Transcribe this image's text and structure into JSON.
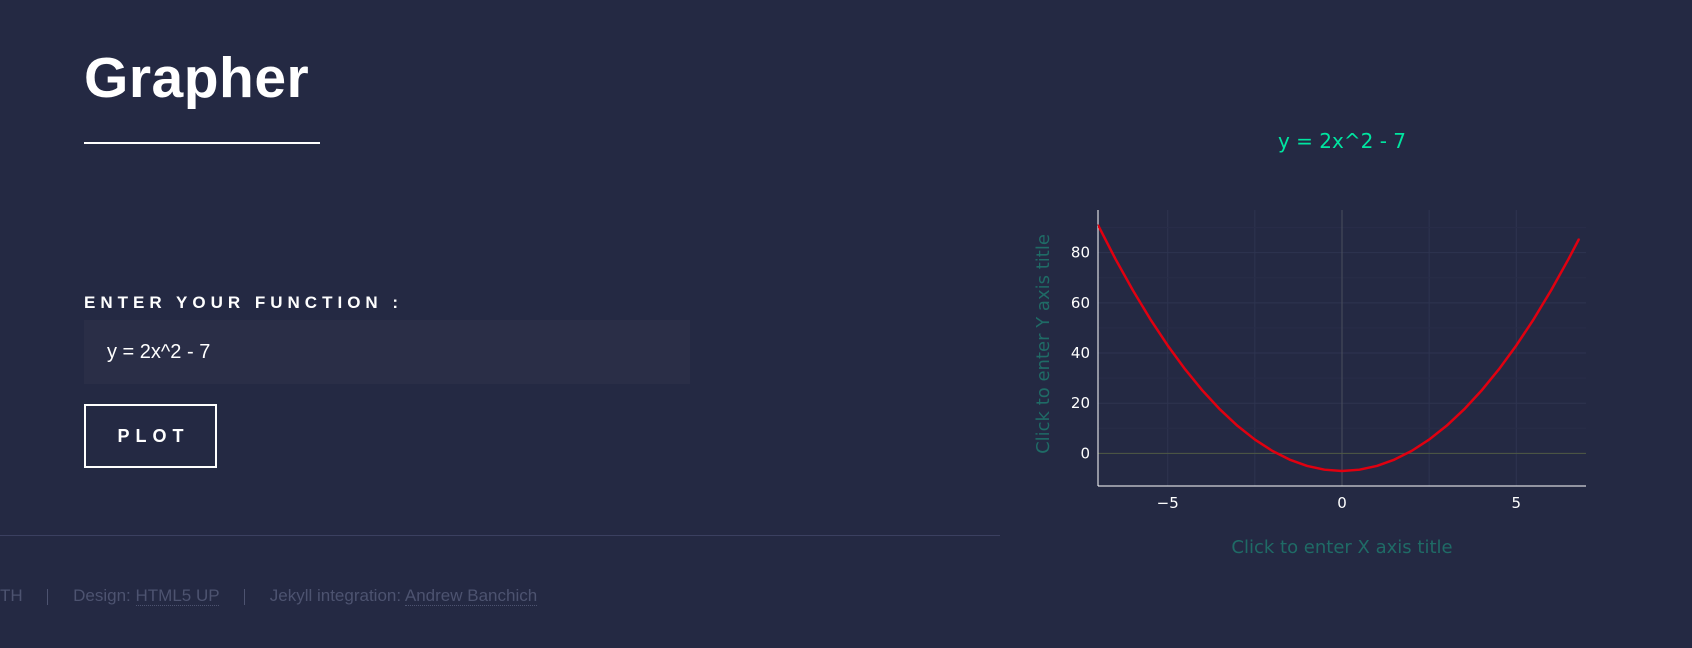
{
  "header": {
    "title": "Grapher"
  },
  "form": {
    "label": "ENTER YOUR FUNCTION :",
    "input_value": "y = 2x^2 - 7",
    "plot_button_label": "PLOT"
  },
  "footer": {
    "items": [
      {
        "text": "TH"
      },
      {
        "prefix": "Design: ",
        "link": "HTML5 UP"
      },
      {
        "prefix": "Jekyll integration: ",
        "link": "Andrew Banchich"
      }
    ]
  },
  "colors": {
    "background": "#242943",
    "title_accent": "#00e5a0",
    "curve": "#e00010",
    "axis_title": "#1f6b66"
  },
  "chart_data": {
    "type": "line",
    "title": "y = 2x^2 - 7",
    "xlabel": "Click to enter X axis title",
    "ylabel": "Click to enter Y axis title",
    "xlim": [
      -7,
      7
    ],
    "ylim": [
      -13,
      97
    ],
    "xticks": [
      -5,
      0,
      5
    ],
    "xtick_labels": [
      "−5",
      "0",
      "5"
    ],
    "yticks": [
      0,
      20,
      40,
      60,
      80
    ],
    "ytick_labels": [
      "0",
      "20",
      "40",
      "60",
      "80"
    ],
    "grid": true,
    "series": [
      {
        "x": [
          -7,
          -6.5,
          -6,
          -5.5,
          -5,
          -4.5,
          -4,
          -3.5,
          -3,
          -2.5,
          -2,
          -1.5,
          -1,
          -0.5,
          0,
          0.5,
          1,
          1.5,
          2,
          2.5,
          3,
          3.5,
          4,
          4.5,
          5,
          5.5,
          6,
          6.5,
          6.8
        ],
        "y": [
          91,
          77.5,
          65,
          53.5,
          43,
          33.5,
          25,
          17.5,
          11,
          5.5,
          1,
          -2.5,
          -5,
          -6.5,
          -7,
          -6.5,
          -5,
          -2.5,
          1,
          5.5,
          11,
          17.5,
          25,
          33.5,
          43,
          53.5,
          65,
          77.5,
          85.48
        ]
      }
    ]
  }
}
